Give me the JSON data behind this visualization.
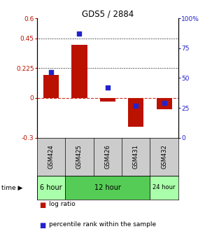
{
  "title": "GDS5 / 2884",
  "samples": [
    "GSM424",
    "GSM425",
    "GSM426",
    "GSM431",
    "GSM432"
  ],
  "log_ratio": [
    0.175,
    0.4,
    -0.025,
    -0.22,
    -0.085
  ],
  "percentile_rank": [
    55,
    87,
    42,
    27,
    29
  ],
  "ylim_left": [
    -0.3,
    0.6
  ],
  "ylim_right": [
    0,
    100
  ],
  "yticks_left": [
    -0.3,
    0,
    0.225,
    0.45,
    0.6
  ],
  "yticks_right": [
    0,
    25,
    50,
    75,
    100
  ],
  "ytick_labels_left": [
    "-0.3",
    "0",
    "0.225",
    "0.45",
    "0.6"
  ],
  "ytick_labels_right": [
    "0",
    "25",
    "50",
    "75",
    "100%"
  ],
  "hlines": [
    0.225,
    0.45
  ],
  "bar_color": "#bb1100",
  "scatter_color": "#2222cc",
  "dashed_line_color": "#cc3322",
  "legend_bar_label": "log ratio",
  "legend_scatter_label": "percentile rank within the sample",
  "bg_color": "#ffffff",
  "sample_bg_color": "#cccccc",
  "time_colors": [
    "#aaffaa",
    "#55cc55",
    "#aaffaa"
  ]
}
